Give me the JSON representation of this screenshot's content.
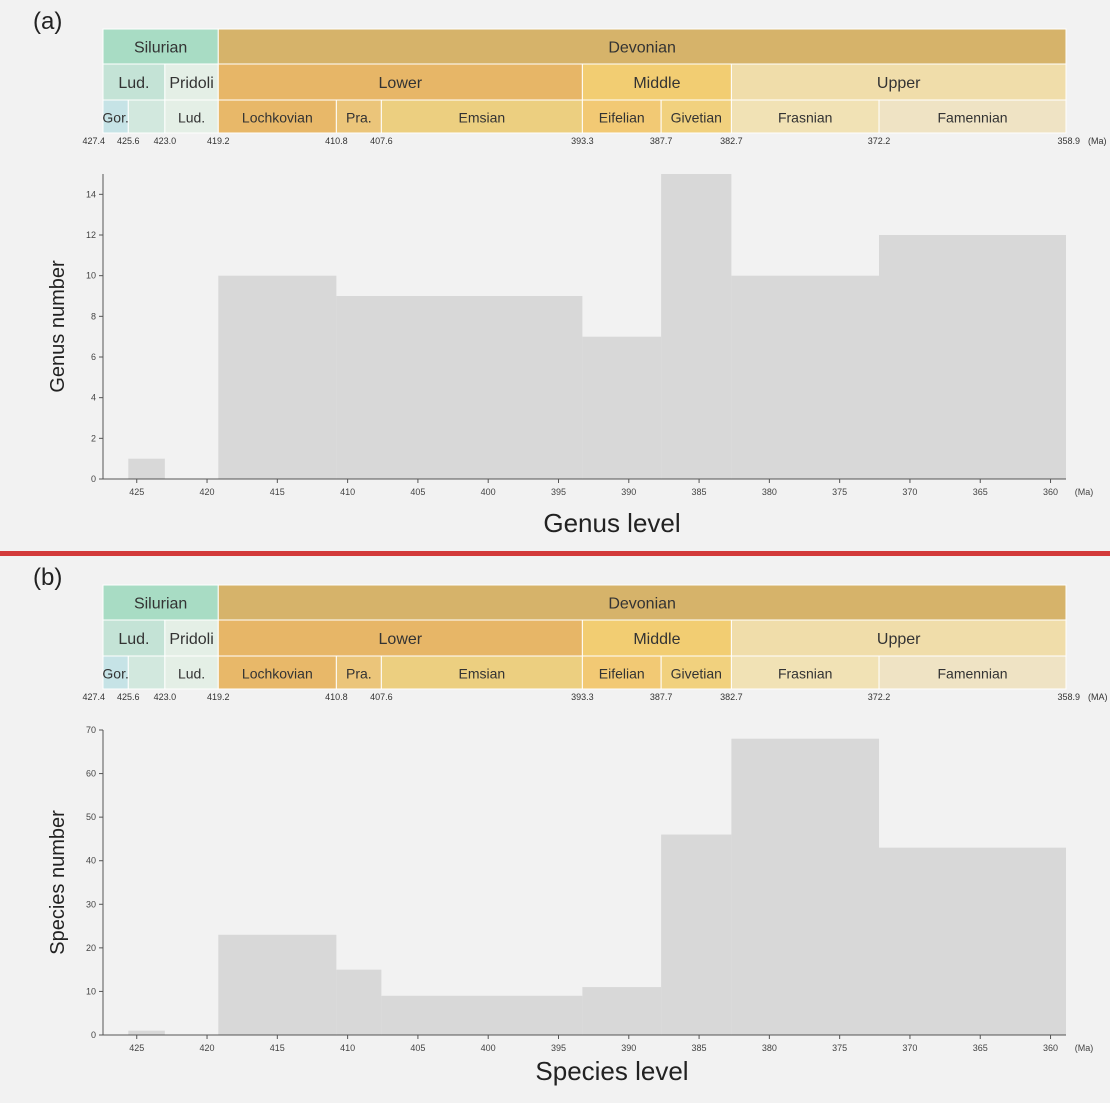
{
  "colors": {
    "background": "#f2f2f2",
    "bar": "#d8d8d8",
    "separator": "#d33a3a",
    "silurian": "#a8dcc4",
    "devonian": "#d6b36a",
    "ludlow": "#c4e3d6",
    "pridoli": "#e4efe6",
    "gorstian": "#c6e3e6",
    "ludfordian": "#d2e8de",
    "lower_devonian": "#e7b667",
    "middle_devonian": "#f2cd72",
    "upper_devonian": "#f0ddaa",
    "lochkovian": "#e8b869",
    "pragian": "#ebc57a",
    "emsian": "#eccf80",
    "eifelian": "#f2c974",
    "givetian": "#f1d17e",
    "frasnian": "#f1e2b5",
    "famennian": "#efe3c4"
  },
  "timescale": {
    "periods": [
      {
        "label": "Silurian",
        "start": 427.4,
        "end": 419.2,
        "color_key": "silurian"
      },
      {
        "label": "Devonian",
        "start": 419.2,
        "end": 358.9,
        "color_key": "devonian"
      }
    ],
    "epochs": [
      {
        "label": "Lud.",
        "start": 427.4,
        "end": 423.0,
        "color_key": "ludlow"
      },
      {
        "label": "Pridoli",
        "start": 423.0,
        "end": 419.2,
        "color_key": "pridoli"
      },
      {
        "label": "Lower",
        "start": 419.2,
        "end": 393.3,
        "color_key": "lower_devonian"
      },
      {
        "label": "Middle",
        "start": 393.3,
        "end": 382.7,
        "color_key": "middle_devonian"
      },
      {
        "label": "Upper",
        "start": 382.7,
        "end": 358.9,
        "color_key": "upper_devonian"
      }
    ],
    "stages": [
      {
        "label": "Gor.",
        "start": 427.4,
        "end": 425.6,
        "color_key": "gorstian"
      },
      {
        "label": "",
        "start": 425.6,
        "end": 423.0,
        "color_key": "ludfordian"
      },
      {
        "label": "Lud.",
        "start": 423.0,
        "end": 419.2,
        "color_key": "pridoli"
      },
      {
        "label": "Lochkovian",
        "start": 419.2,
        "end": 410.8,
        "color_key": "lochkovian"
      },
      {
        "label": "Pra.",
        "start": 410.8,
        "end": 407.6,
        "color_key": "pragian"
      },
      {
        "label": "Emsian",
        "start": 407.6,
        "end": 393.3,
        "color_key": "emsian"
      },
      {
        "label": "Eifelian",
        "start": 393.3,
        "end": 387.7,
        "color_key": "eifelian"
      },
      {
        "label": "Givetian",
        "start": 387.7,
        "end": 382.7,
        "color_key": "givetian"
      },
      {
        "label": "Frasnian",
        "start": 382.7,
        "end": 372.2,
        "color_key": "frasnian"
      },
      {
        "label": "Famennian",
        "start": 372.2,
        "end": 358.9,
        "color_key": "famennian"
      }
    ],
    "boundary_ages": [
      "427.4",
      "425.6",
      "423.0",
      "419.2",
      "410.8",
      "407.6",
      "393.3",
      "387.7",
      "382.7",
      "372.2",
      "358.9"
    ]
  },
  "chart_data": [
    {
      "type": "bar",
      "panel_label": "(a)",
      "title": "Genus level",
      "ylabel": "Genus number",
      "xlabel": "",
      "x_unit_label": "(Ma)",
      "timescale_unit_label": "(Ma)",
      "xlim": [
        427.4,
        358.9
      ],
      "ylim": [
        0,
        15
      ],
      "x_ticks": [
        425,
        420,
        415,
        410,
        405,
        400,
        395,
        390,
        385,
        380,
        375,
        370,
        365,
        360
      ],
      "y_ticks": [
        0,
        2,
        4,
        6,
        8,
        10,
        12,
        14
      ],
      "intervals": [
        {
          "start": 425.6,
          "end": 423.0,
          "value": 1
        },
        {
          "start": 419.2,
          "end": 410.8,
          "value": 10
        },
        {
          "start": 410.8,
          "end": 393.3,
          "value": 9
        },
        {
          "start": 393.3,
          "end": 387.7,
          "value": 7
        },
        {
          "start": 387.7,
          "end": 382.7,
          "value": 15
        },
        {
          "start": 382.7,
          "end": 372.2,
          "value": 10
        },
        {
          "start": 372.2,
          "end": 358.9,
          "value": 12
        }
      ]
    },
    {
      "type": "bar",
      "panel_label": "(b)",
      "title": "Species level",
      "ylabel": "Species number",
      "xlabel": "",
      "x_unit_label": "(Ma)",
      "timescale_unit_label": "(MA)",
      "xlim": [
        427.4,
        358.9
      ],
      "ylim": [
        0,
        70
      ],
      "x_ticks": [
        425,
        420,
        415,
        410,
        405,
        400,
        395,
        390,
        385,
        380,
        375,
        370,
        365,
        360
      ],
      "y_ticks": [
        0,
        10,
        20,
        30,
        40,
        50,
        60,
        70
      ],
      "intervals": [
        {
          "start": 425.6,
          "end": 423.0,
          "value": 1
        },
        {
          "start": 419.2,
          "end": 410.8,
          "value": 23
        },
        {
          "start": 410.8,
          "end": 407.6,
          "value": 15
        },
        {
          "start": 407.6,
          "end": 393.3,
          "value": 9
        },
        {
          "start": 393.3,
          "end": 387.7,
          "value": 11
        },
        {
          "start": 387.7,
          "end": 382.7,
          "value": 46
        },
        {
          "start": 382.7,
          "end": 372.2,
          "value": 68
        },
        {
          "start": 372.2,
          "end": 358.9,
          "value": 43
        }
      ]
    }
  ]
}
